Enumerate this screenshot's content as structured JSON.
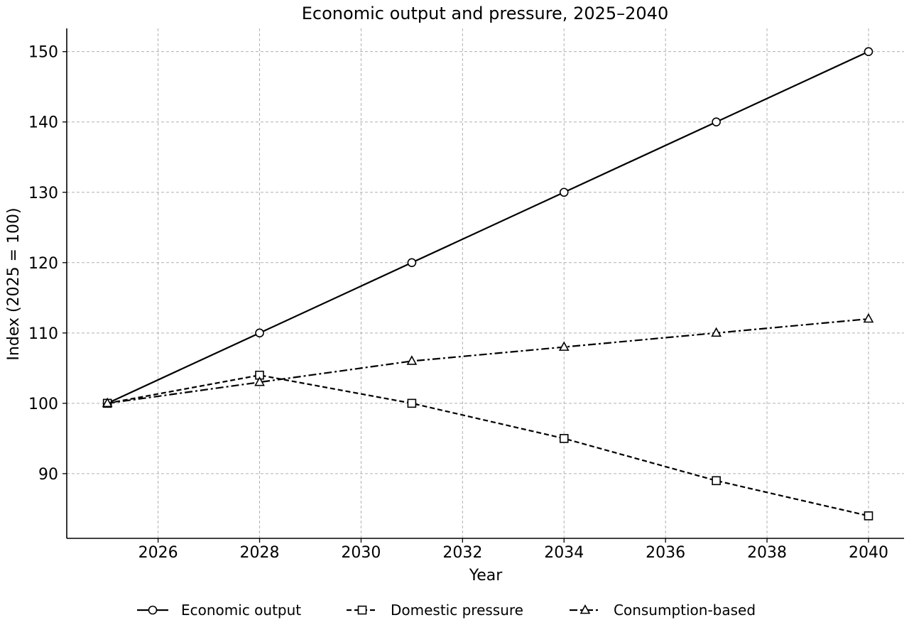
{
  "chart_data": {
    "type": "line",
    "title": "Economic output and pressure, 2025–2040",
    "xlabel": "Year",
    "ylabel": "Index (2025 = 100)",
    "x": [
      2025,
      2028,
      2031,
      2034,
      2037,
      2040
    ],
    "xlim": [
      2024.2,
      2040.7
    ],
    "ylim": [
      80.8,
      153.3
    ],
    "xticks": [
      2026,
      2028,
      2030,
      2032,
      2034,
      2036,
      2038,
      2040
    ],
    "yticks": [
      90,
      100,
      110,
      120,
      130,
      140,
      150
    ],
    "grid": true,
    "legend_position": "bottom-center",
    "series": [
      {
        "name": "Economic output",
        "values": [
          100,
          110,
          120,
          130,
          140,
          150
        ],
        "marker": "circle",
        "linestyle": "solid",
        "color": "#000000"
      },
      {
        "name": "Domestic pressure",
        "values": [
          100,
          104,
          100,
          95,
          89,
          84
        ],
        "marker": "square",
        "linestyle": "dashed",
        "color": "#000000"
      },
      {
        "name": "Consumption-based",
        "values": [
          100,
          103,
          106,
          108,
          110,
          112
        ],
        "marker": "triangle",
        "linestyle": "dashdot",
        "color": "#000000"
      }
    ]
  }
}
